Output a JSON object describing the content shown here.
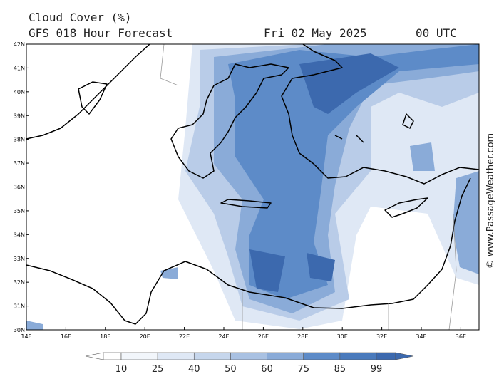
{
  "header": {
    "title": "Cloud Cover (%)",
    "subtitle": "GFS 018 Hour Forecast",
    "date": "Fri 02 May 2025",
    "time": "00 UTC"
  },
  "map": {
    "lat_labels": [
      "42N",
      "41N",
      "40N",
      "39N",
      "38N",
      "37N",
      "36N",
      "35N",
      "34N",
      "33N",
      "32N",
      "31N",
      "30N"
    ],
    "lon_labels": [
      "14E",
      "16E",
      "18E",
      "20E",
      "22E",
      "24E",
      "26E",
      "28E",
      "30E",
      "32E",
      "34E",
      "36E"
    ]
  },
  "legend": {
    "labels": [
      10,
      25,
      40,
      50,
      60,
      75,
      85,
      99
    ]
  },
  "credit": "© www.PassageWeather.com"
}
